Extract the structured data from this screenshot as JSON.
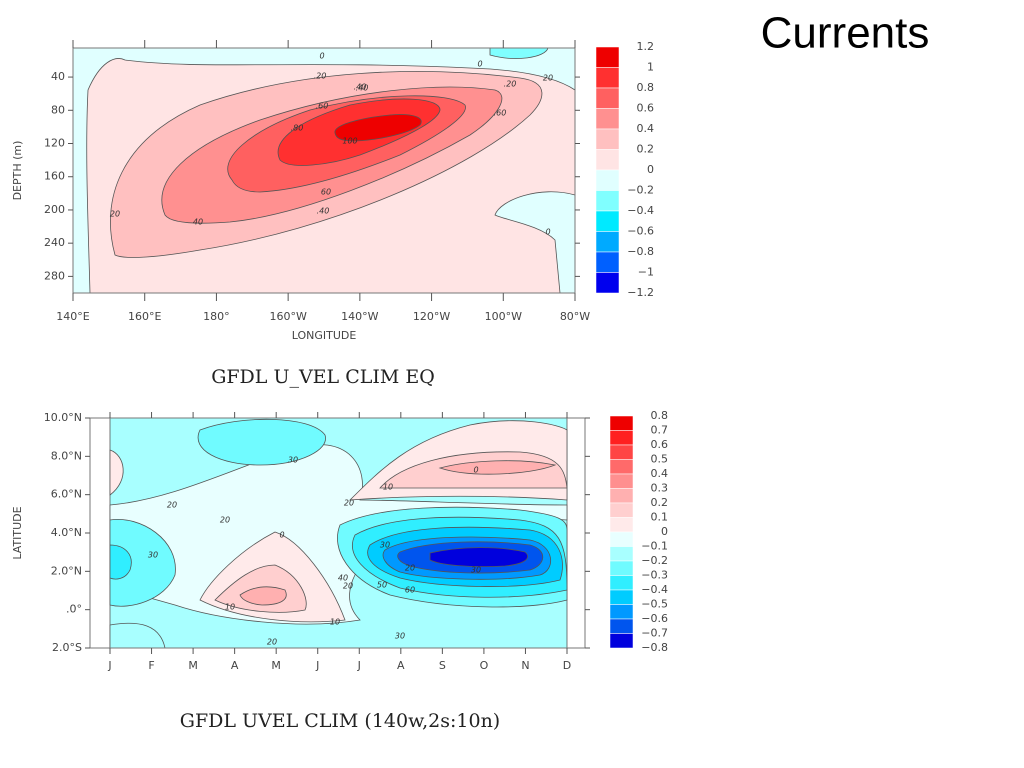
{
  "title": "Currents",
  "chart_data": [
    {
      "type": "contour",
      "caption": "GFDL U_VEL CLIM EQ",
      "xlabel": "LONGITUDE",
      "ylabel": "DEPTH (m)",
      "xlim": [
        140,
        280
      ],
      "xticks": [
        {
          "value": 140,
          "label": "140°E"
        },
        {
          "value": 160,
          "label": "160°E"
        },
        {
          "value": 180,
          "label": "180°"
        },
        {
          "value": 200,
          "label": "160°W"
        },
        {
          "value": 220,
          "label": "140°W"
        },
        {
          "value": 240,
          "label": "120°W"
        },
        {
          "value": 260,
          "label": "100°W"
        },
        {
          "value": 280,
          "label": "80°W"
        }
      ],
      "ylim": [
        5,
        300
      ],
      "y_inverted": true,
      "yticks": [
        40,
        80,
        120,
        160,
        200,
        240,
        280
      ],
      "levels": [
        1.2,
        1,
        0.8,
        0.6,
        0.4,
        0.2,
        0,
        {
          "value": -0.2,
          "label": "−0.2"
        },
        {
          "value": -0.4,
          "label": "−0.4"
        },
        {
          "value": -0.6,
          "label": "−0.6"
        },
        {
          "value": -0.8,
          "label": "−0.8"
        },
        {
          "value": -1,
          "label": "−1"
        },
        {
          "value": -1.2,
          "label": "−1.2"
        }
      ],
      "colors": [
        "#ee0000",
        "#ff3030",
        "#ff6060",
        "#ff9090",
        "#ffc0c0",
        "#ffe4e4",
        "#e0ffff",
        "#80ffff",
        "#00eaff",
        "#00aaff",
        "#0060ff",
        "#0000ee"
      ],
      "contour_labels": [
        "0",
        "0",
        ".20",
        ".40",
        ".60",
        ".80",
        "100",
        ".40",
        "20",
        "60",
        "20",
        ".20",
        "40",
        ".60",
        ".40",
        "0"
      ]
    },
    {
      "type": "contour",
      "caption": "GFDL UVEL CLIM (140w,2s:10n)",
      "ylabel": "LATITUDE",
      "categories": [
        "J",
        "F",
        "M",
        "A",
        "M",
        "J",
        "J",
        "A",
        "S",
        "O",
        "N",
        "D"
      ],
      "ylim": [
        -2,
        10
      ],
      "yticks": [
        {
          "value": 10,
          "label": "10.0°N"
        },
        {
          "value": 8,
          "label": "8.0°N"
        },
        {
          "value": 6,
          "label": "6.0°N"
        },
        {
          "value": 4,
          "label": "4.0°N"
        },
        {
          "value": 2,
          "label": "2.0°N"
        },
        {
          "value": 0,
          "label": ".0°"
        },
        {
          "value": -2,
          "label": "2.0°S"
        }
      ],
      "levels": [
        0.8,
        0.7,
        0.6,
        0.5,
        0.4,
        0.3,
        0.2,
        0.1,
        0,
        {
          "value": -0.1,
          "label": "−0.1"
        },
        {
          "value": -0.2,
          "label": "−0.2"
        },
        {
          "value": -0.3,
          "label": "−0.3"
        },
        {
          "value": -0.4,
          "label": "−0.4"
        },
        {
          "value": -0.5,
          "label": "−0.5"
        },
        {
          "value": -0.6,
          "label": "−0.6"
        },
        {
          "value": -0.7,
          "label": "−0.7"
        },
        {
          "value": -0.8,
          "label": "−0.8"
        }
      ],
      "colors": [
        "#ee0000",
        "#ff2020",
        "#ff4545",
        "#ff6a6a",
        "#ff8f8f",
        "#ffb0b0",
        "#ffcfcf",
        "#ffeaea",
        "#e8ffff",
        "#a8ffff",
        "#70fbff",
        "#30eeff",
        "#00ccff",
        "#0099ff",
        "#0055ee",
        "#0000dd"
      ],
      "contour_labels": [
        "30",
        "20",
        "20",
        "30",
        "0",
        "20",
        "10",
        "0",
        "10",
        "20",
        "30",
        "40",
        "30",
        "50",
        "60",
        "20",
        "30",
        "20",
        "10"
      ]
    }
  ]
}
